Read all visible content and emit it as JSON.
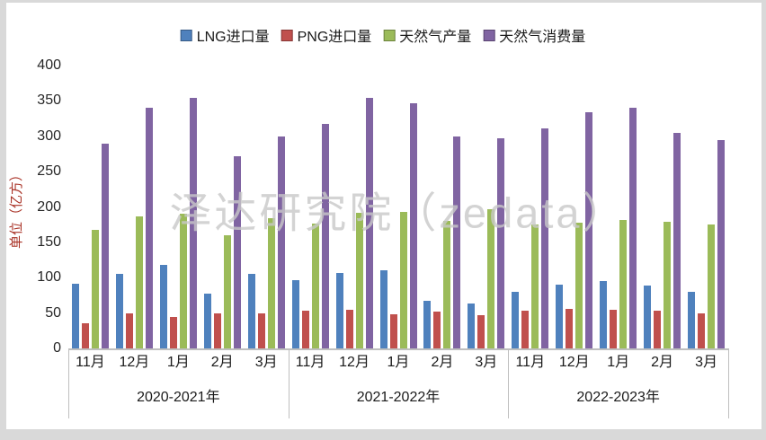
{
  "meta": {
    "frame_color": "#d9d9d9",
    "canvas_color": "#ffffff",
    "axis_color": "#bfbfbf",
    "text_color": "#262626",
    "ylabel_color": "#a93226"
  },
  "watermark": "泽达研究院（zedata）",
  "chart_data": {
    "type": "bar",
    "title": "",
    "ylabel": "单位（亿方）",
    "ylim": [
      0,
      400
    ],
    "ytick_step": 50,
    "grid": false,
    "legend_position": "top",
    "categories": [
      "11月",
      "12月",
      "1月",
      "2月",
      "3月",
      "11月",
      "12月",
      "1月",
      "2月",
      "3月",
      "11月",
      "12月",
      "1月",
      "2月",
      "3月"
    ],
    "groups": [
      {
        "label": "2020-2021年",
        "span": 5
      },
      {
        "label": "2021-2022年",
        "span": 5
      },
      {
        "label": "2022-2023年",
        "span": 5
      }
    ],
    "series": [
      {
        "name": "LNG进口量",
        "color": "#4F81BD",
        "values": [
          92,
          105,
          118,
          78,
          105,
          97,
          107,
          110,
          67,
          64,
          80,
          90,
          95,
          89,
          80
        ]
      },
      {
        "name": "PNG进口量",
        "color": "#C0504D",
        "values": [
          35,
          50,
          45,
          50,
          50,
          53,
          55,
          48,
          52,
          47,
          53,
          56,
          55,
          53,
          50
        ]
      },
      {
        "name": "天然气产量",
        "color": "#9BBB59",
        "values": [
          168,
          187,
          190,
          160,
          184,
          176,
          192,
          193,
          180,
          197,
          175,
          178,
          182,
          179,
          175
        ]
      },
      {
        "name": "天然气消费量",
        "color": "#8064A2",
        "values": [
          290,
          340,
          354,
          272,
          300,
          318,
          354,
          347,
          300,
          297,
          311,
          334,
          340,
          305,
          295
        ]
      }
    ]
  }
}
